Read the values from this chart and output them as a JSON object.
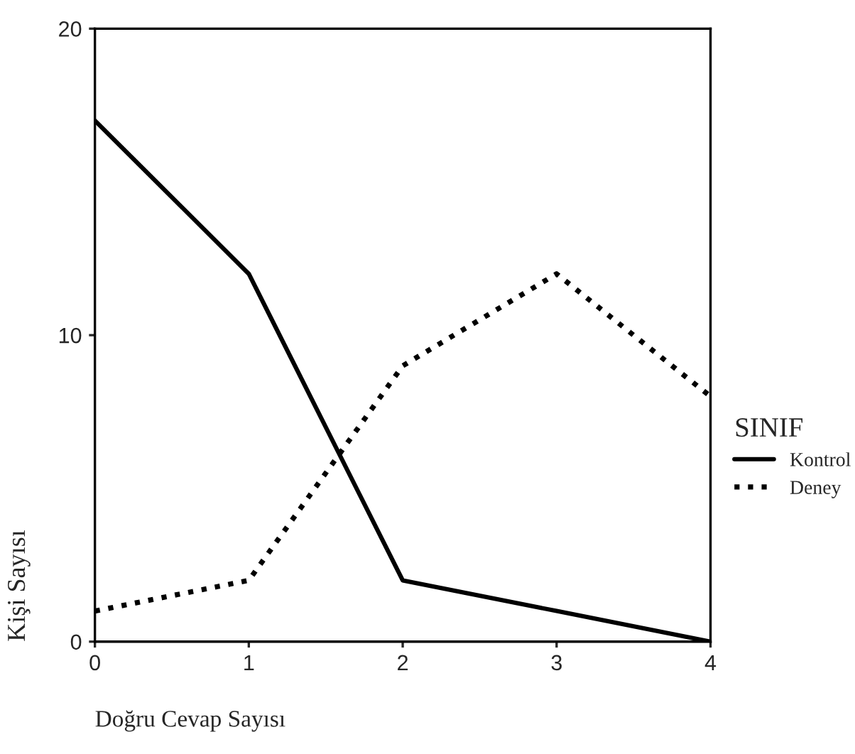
{
  "chart_data": {
    "type": "line",
    "xlabel": "Doğru Cevap Sayısı",
    "ylabel": "Kişi Sayısı",
    "legend_title": "SINIF",
    "legend": "right",
    "x": [
      0,
      1,
      2,
      3,
      4
    ],
    "xlim": [
      0,
      4
    ],
    "xticks": [
      0,
      1,
      2,
      3,
      4
    ],
    "ylim": [
      0,
      20
    ],
    "yticks": [
      0,
      10,
      20
    ],
    "grid": false,
    "series": [
      {
        "name": "Kontrol",
        "color": "#000000",
        "line_style": "solid",
        "values": [
          17,
          12,
          2,
          1,
          0
        ]
      },
      {
        "name": "Deney",
        "color": "#000000",
        "line_style": "dotted",
        "values": [
          1,
          2,
          9,
          12,
          8
        ]
      }
    ]
  }
}
